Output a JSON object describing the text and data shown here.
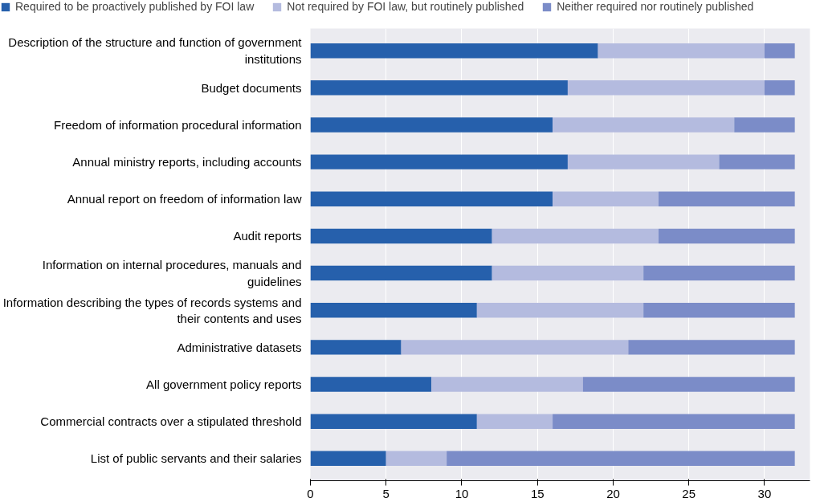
{
  "chart_data": {
    "type": "bar",
    "orientation": "horizontal",
    "stacked": true,
    "categories": [
      "Description of the structure and function of government institutions",
      "Budget documents",
      "Freedom of information procedural information",
      "Annual ministry reports, including accounts",
      "Annual report on freedom of information law",
      "Audit reports",
      "Information on internal procedures, manuals and guidelines",
      "Information describing the types of records systems and their contents and uses",
      "Administrative datasets",
      "All government policy reports",
      "Commercial contracts over a stipulated threshold",
      "List of public servants and their salaries"
    ],
    "series": [
      {
        "name": "Required to be proactively published by FOI law",
        "color": "#2660ac",
        "values": [
          19,
          17,
          16,
          17,
          16,
          12,
          12,
          11,
          6,
          8,
          11,
          5
        ]
      },
      {
        "name": "Not required by FOI law, but routinely published",
        "color": "#b4bbdf",
        "values": [
          11,
          13,
          12,
          10,
          7,
          11,
          10,
          11,
          15,
          10,
          5,
          4
        ]
      },
      {
        "name": "Neither required nor routinely published",
        "color": "#7b8cc8",
        "values": [
          2,
          2,
          4,
          5,
          9,
          9,
          10,
          10,
          11,
          14,
          16,
          23
        ]
      }
    ],
    "xlim": [
      0,
      33
    ],
    "xticks": [
      0,
      5,
      10,
      15,
      20,
      25,
      30
    ],
    "grid": "x",
    "legend": "top"
  }
}
